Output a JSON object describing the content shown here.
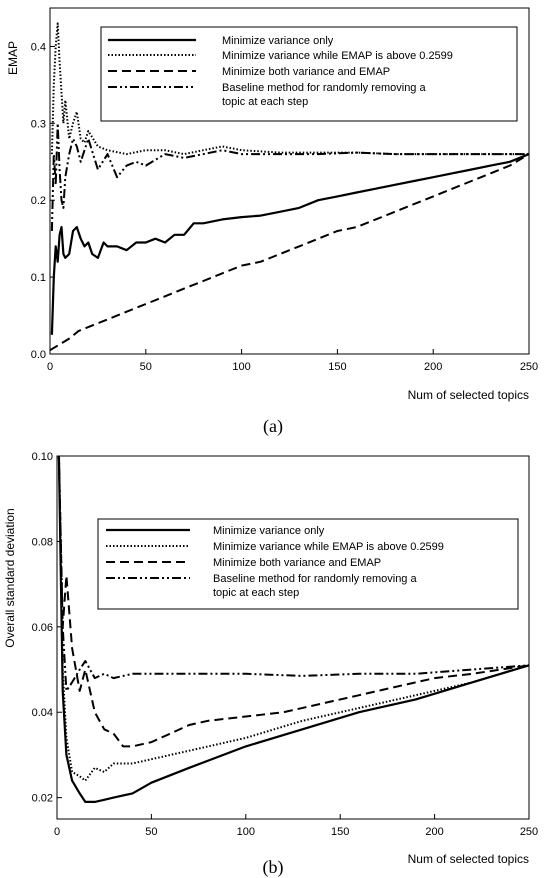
{
  "chart_data": [
    {
      "type": "line",
      "caption": "(a)",
      "xlabel": "Num of selected topics",
      "ylabel": "EMAP",
      "xlim": [
        0,
        250
      ],
      "ylim": [
        0,
        0.45
      ],
      "xticks": [
        0,
        50,
        100,
        150,
        200,
        250
      ],
      "yticks": [
        0,
        0.1,
        0.2,
        0.3,
        0.4
      ],
      "ytick_labels": [
        "0.0",
        "0.1",
        "0.2",
        "0.3",
        "0.4"
      ],
      "grid": false,
      "legend_position": "top-right",
      "series": [
        {
          "name": "Minimize variance only",
          "dash": "solid",
          "x": [
            1,
            2,
            3,
            4,
            5,
            6,
            7,
            8,
            10,
            12,
            14,
            16,
            18,
            20,
            22,
            25,
            28,
            30,
            35,
            40,
            45,
            50,
            55,
            60,
            65,
            70,
            75,
            80,
            90,
            100,
            110,
            120,
            130,
            140,
            150,
            160,
            170,
            180,
            190,
            200,
            210,
            220,
            230,
            240,
            250
          ],
          "y": [
            0.025,
            0.1,
            0.14,
            0.12,
            0.155,
            0.165,
            0.13,
            0.125,
            0.13,
            0.16,
            0.165,
            0.15,
            0.14,
            0.145,
            0.13,
            0.125,
            0.145,
            0.14,
            0.14,
            0.135,
            0.145,
            0.145,
            0.15,
            0.145,
            0.155,
            0.155,
            0.17,
            0.17,
            0.175,
            0.178,
            0.18,
            0.185,
            0.19,
            0.2,
            0.205,
            0.21,
            0.215,
            0.22,
            0.225,
            0.23,
            0.235,
            0.24,
            0.245,
            0.25,
            0.26
          ]
        },
        {
          "name": "Minimize variance while EMAP is above 0.2599",
          "dash": "dotted",
          "x": [
            1,
            2,
            3,
            4,
            5,
            6,
            7,
            8,
            10,
            12,
            14,
            16,
            18,
            20,
            25,
            30,
            40,
            50,
            60,
            70,
            80,
            90,
            100,
            120,
            140,
            160,
            180,
            200,
            220,
            240,
            250
          ],
          "y": [
            0.26,
            0.35,
            0.4,
            0.43,
            0.38,
            0.34,
            0.3,
            0.33,
            0.28,
            0.3,
            0.315,
            0.28,
            0.275,
            0.29,
            0.27,
            0.265,
            0.26,
            0.265,
            0.265,
            0.26,
            0.265,
            0.27,
            0.265,
            0.262,
            0.262,
            0.262,
            0.26,
            0.26,
            0.26,
            0.26,
            0.26
          ]
        },
        {
          "name": "Minimize both variance and EMAP",
          "dash": "dashed",
          "x": [
            0,
            10,
            15,
            20,
            30,
            40,
            50,
            60,
            70,
            80,
            90,
            100,
            110,
            120,
            130,
            140,
            150,
            160,
            170,
            180,
            190,
            200,
            210,
            220,
            230,
            240,
            250
          ],
          "y": [
            0.005,
            0.02,
            0.03,
            0.035,
            0.045,
            0.055,
            0.065,
            0.075,
            0.085,
            0.095,
            0.105,
            0.115,
            0.12,
            0.13,
            0.14,
            0.15,
            0.16,
            0.165,
            0.175,
            0.185,
            0.195,
            0.205,
            0.215,
            0.225,
            0.235,
            0.245,
            0.26
          ]
        },
        {
          "name": "Baseline method for randomly removing a topic at each step",
          "dash": "dashdotdot",
          "x": [
            1,
            2,
            3,
            4,
            5,
            6,
            7,
            8,
            10,
            12,
            14,
            16,
            20,
            25,
            30,
            35,
            40,
            45,
            50,
            60,
            70,
            80,
            90,
            100,
            120,
            140,
            160,
            180,
            200,
            220,
            240,
            250
          ],
          "y": [
            0.16,
            0.26,
            0.22,
            0.3,
            0.24,
            0.2,
            0.19,
            0.23,
            0.26,
            0.28,
            0.27,
            0.25,
            0.28,
            0.24,
            0.26,
            0.23,
            0.245,
            0.25,
            0.245,
            0.26,
            0.255,
            0.26,
            0.265,
            0.26,
            0.26,
            0.26,
            0.262,
            0.26,
            0.26,
            0.26,
            0.26,
            0.26
          ]
        }
      ]
    },
    {
      "type": "line",
      "caption": "(b)",
      "xlabel": "Num of selected topics",
      "ylabel": "Overall standard deviation",
      "xlim": [
        0,
        250
      ],
      "ylim": [
        0.015,
        0.1
      ],
      "xticks": [
        0,
        50,
        100,
        150,
        200,
        250
      ],
      "yticks": [
        0.02,
        0.04,
        0.06,
        0.08,
        0.1
      ],
      "ytick_labels": [
        "0.02",
        "0.04",
        "0.06",
        "0.08",
        "0.10"
      ],
      "grid": false,
      "legend_position": "middle-right",
      "series": [
        {
          "name": "Minimize variance only",
          "dash": "solid",
          "x": [
            1,
            3,
            5,
            8,
            12,
            15,
            20,
            25,
            30,
            40,
            50,
            70,
            100,
            130,
            160,
            190,
            220,
            250
          ],
          "y": [
            0.1,
            0.045,
            0.03,
            0.024,
            0.021,
            0.019,
            0.019,
            0.0195,
            0.02,
            0.021,
            0.0235,
            0.027,
            0.032,
            0.036,
            0.04,
            0.043,
            0.047,
            0.051
          ]
        },
        {
          "name": "Minimize variance while EMAP is above 0.2599",
          "dash": "dotted",
          "x": [
            1,
            3,
            5,
            8,
            12,
            15,
            20,
            25,
            30,
            40,
            50,
            70,
            100,
            130,
            160,
            190,
            220,
            250
          ],
          "y": [
            0.1,
            0.05,
            0.034,
            0.026,
            0.025,
            0.024,
            0.027,
            0.026,
            0.028,
            0.028,
            0.029,
            0.031,
            0.034,
            0.038,
            0.041,
            0.044,
            0.047,
            0.051
          ]
        },
        {
          "name": "Minimize both variance and EMAP",
          "dash": "dashed",
          "x": [
            1,
            3,
            5,
            8,
            12,
            15,
            20,
            25,
            30,
            35,
            40,
            50,
            60,
            70,
            80,
            100,
            120,
            140,
            160,
            180,
            200,
            220,
            250
          ],
          "y": [
            0.1,
            0.06,
            0.072,
            0.055,
            0.045,
            0.05,
            0.04,
            0.036,
            0.035,
            0.032,
            0.032,
            0.033,
            0.035,
            0.037,
            0.038,
            0.039,
            0.04,
            0.042,
            0.044,
            0.046,
            0.048,
            0.049,
            0.051
          ]
        },
        {
          "name": "Baseline method for randomly removing a topic at each step",
          "dash": "dashdotdot",
          "x": [
            1,
            3,
            5,
            8,
            12,
            15,
            20,
            25,
            30,
            40,
            50,
            70,
            100,
            130,
            160,
            190,
            220,
            250
          ],
          "y": [
            0.1,
            0.06,
            0.045,
            0.047,
            0.05,
            0.052,
            0.048,
            0.049,
            0.048,
            0.049,
            0.049,
            0.049,
            0.049,
            0.0485,
            0.049,
            0.049,
            0.05,
            0.051
          ]
        }
      ]
    }
  ]
}
